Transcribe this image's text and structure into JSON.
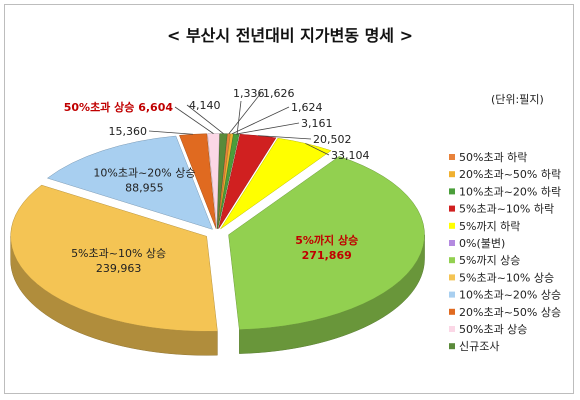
{
  "chart_data": {
    "type": "pie",
    "title": "< 부산시 전년대비 지가변동 명세 >",
    "unit_label": "(단위:필지)",
    "legend_position": "right",
    "slices": [
      {
        "name": "50%초과 하락",
        "value": 1626,
        "label_name": "",
        "label_value": "1,626",
        "color": "#e8823a"
      },
      {
        "name": "20%초과~50% 하락",
        "value": 1624,
        "label_name": "",
        "label_value": "1,624",
        "color": "#f0b030"
      },
      {
        "name": "10%초과~20% 하락",
        "value": 3161,
        "label_name": "",
        "label_value": "3,161",
        "color": "#4a9e3a"
      },
      {
        "name": "5%초과~10% 하락",
        "value": 20502,
        "label_name": "",
        "label_value": "20,502",
        "color": "#d02020"
      },
      {
        "name": "5%까지 하락",
        "value": 33104,
        "label_name": "",
        "label_value": "33,104",
        "color": "#ffff00"
      },
      {
        "name": "0%(불변)",
        "value": 0,
        "label_name": "",
        "label_value": "",
        "color": "#b48ae0"
      },
      {
        "name": "5%까지 상승",
        "value": 271869,
        "label_name": "5%까지 상승",
        "label_value": "271,869",
        "color": "#92d050",
        "label_red": true
      },
      {
        "name": "5%초과~10% 상승",
        "value": 239963,
        "label_name": "5%초과~10% 상승",
        "label_value": "239,963",
        "color": "#f4c454"
      },
      {
        "name": "10%초과~20% 상승",
        "value": 88955,
        "label_name": "10%초과~20% 상승",
        "label_value": "88,955",
        "color": "#a8cff0"
      },
      {
        "name": "20%초과~50% 상승",
        "value": 15360,
        "label_name": "",
        "label_value": "15,360",
        "color": "#e06a20"
      },
      {
        "name": "50%초과 상승",
        "value": 6604,
        "label_name": "50%초과 상승",
        "label_value": "6,604",
        "color": "#fbd7e6",
        "label_red": true
      },
      {
        "name": "신규조사",
        "value": 4140,
        "label_name": "",
        "label_value": "4,140",
        "color": "#5a8a3a"
      }
    ],
    "extra_value_label": "1,336"
  }
}
